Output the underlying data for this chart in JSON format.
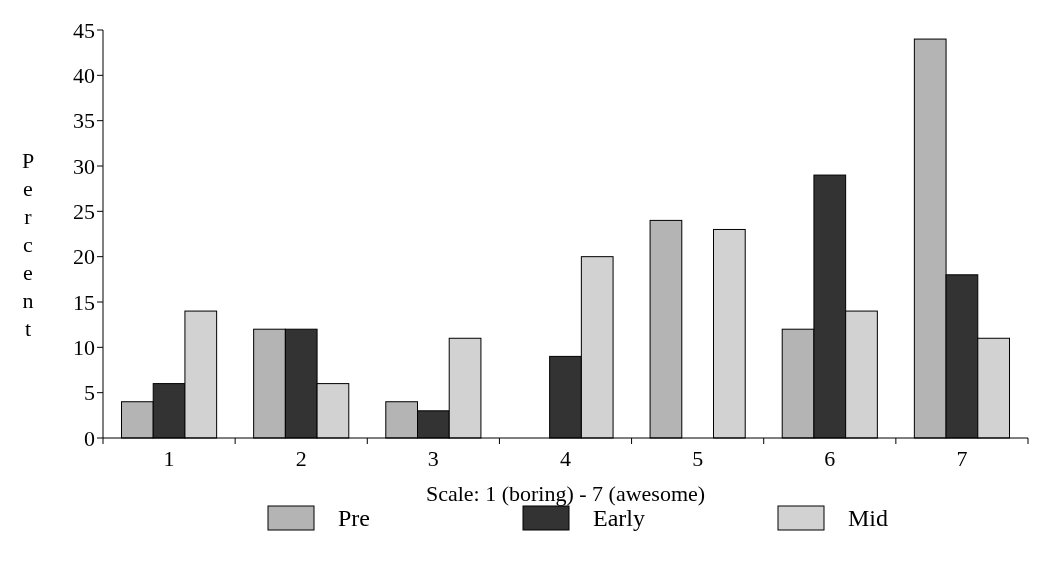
{
  "chart_data": {
    "type": "bar",
    "xlabel": "Scale: 1 (boring) - 7 (awesome)",
    "ylabel": "Percent",
    "categories": [
      "1",
      "2",
      "3",
      "4",
      "5",
      "6",
      "7"
    ],
    "series": [
      {
        "name": "Pre",
        "color": "#b4b4b4",
        "values": [
          4,
          12,
          4,
          0,
          24,
          12,
          44
        ]
      },
      {
        "name": "Early",
        "color": "#333333",
        "values": [
          6,
          12,
          3,
          9,
          0,
          29,
          18
        ]
      },
      {
        "name": "Mid",
        "color": "#d2d2d2",
        "values": [
          14,
          6,
          11,
          20,
          23,
          14,
          11
        ]
      }
    ],
    "ylim": [
      0,
      45
    ],
    "yticks": [
      0,
      5,
      10,
      15,
      20,
      25,
      30,
      35,
      40,
      45
    ],
    "grid": false,
    "legend": "bottom"
  }
}
